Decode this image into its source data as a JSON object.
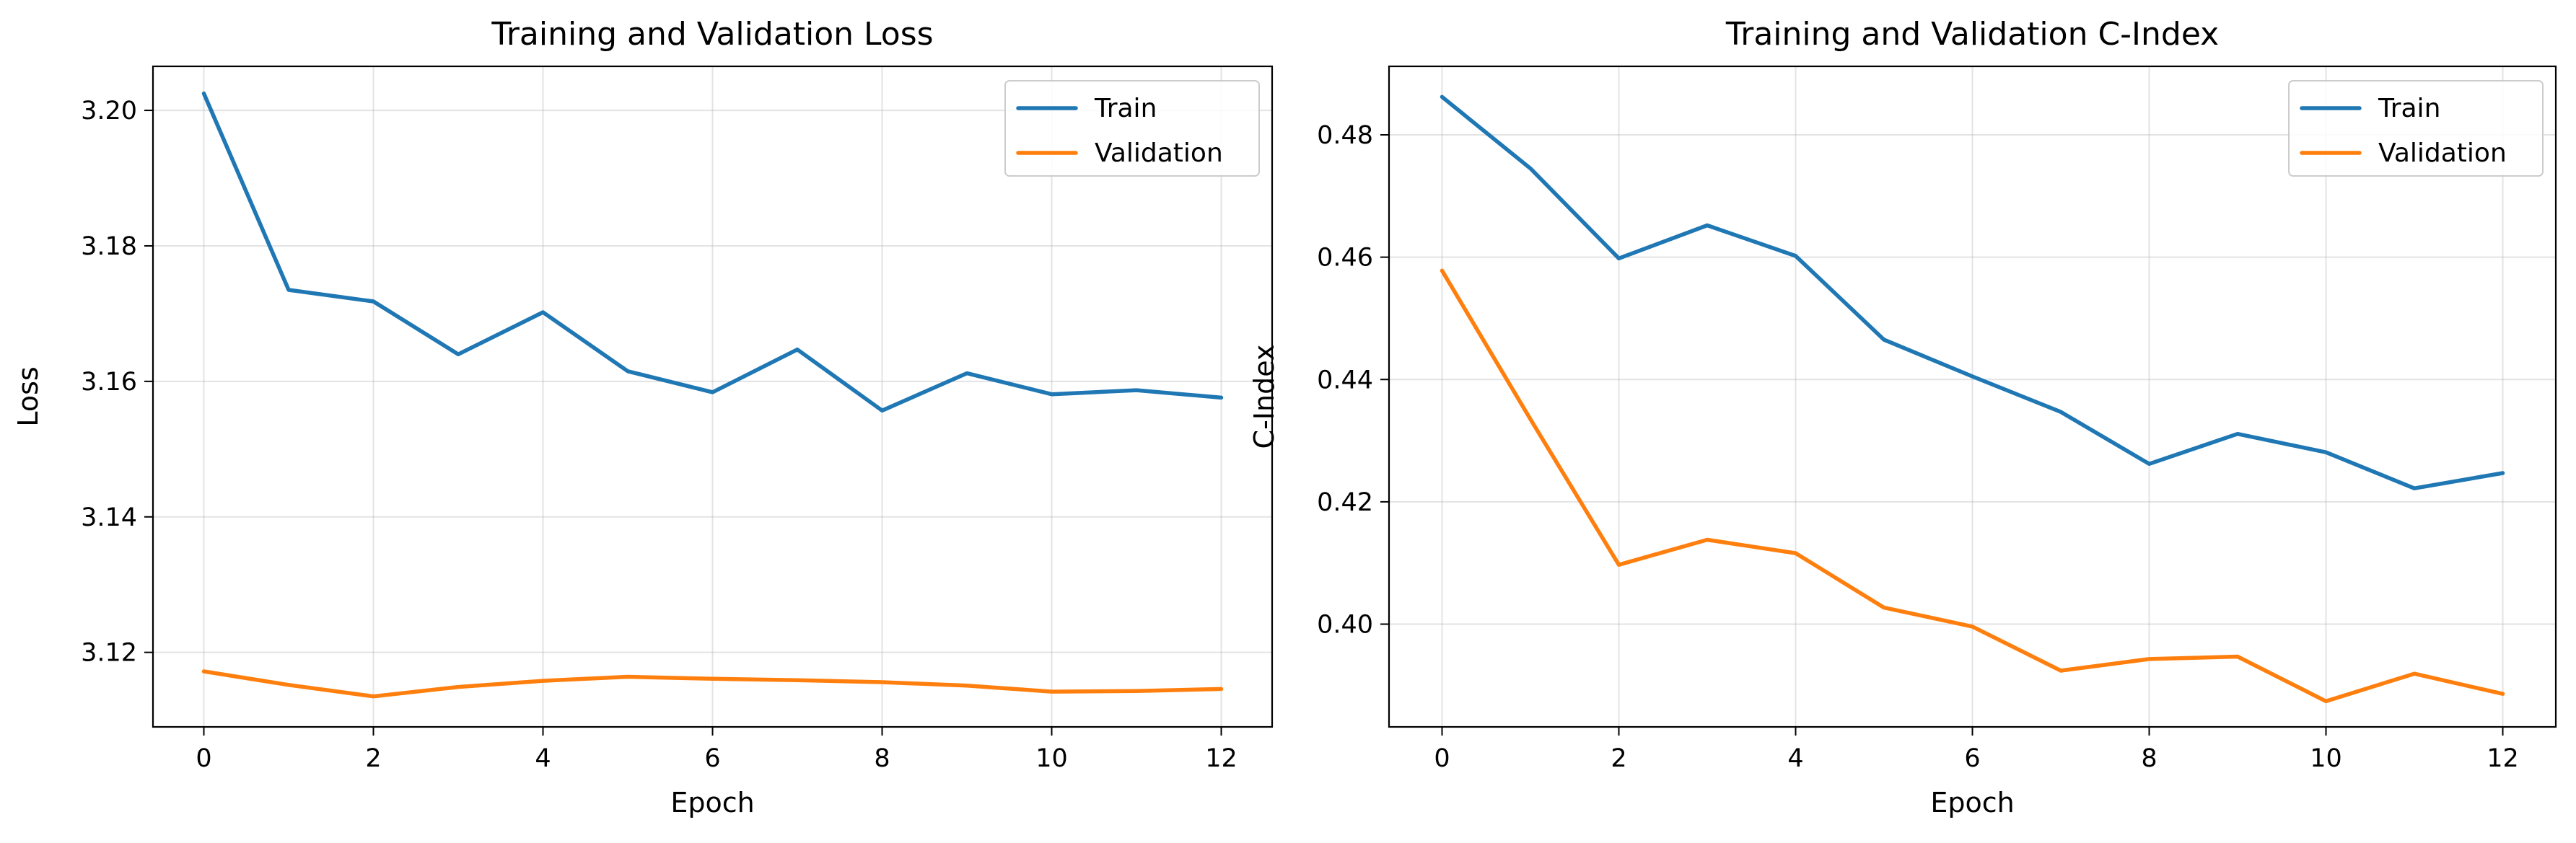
{
  "colors": {
    "train": "#1f77b4",
    "validation": "#ff7f0e"
  },
  "chart_data": [
    {
      "type": "line",
      "title": "Training and Validation Loss",
      "xlabel": "Epoch",
      "ylabel": "Loss",
      "x": [
        0,
        1,
        2,
        3,
        4,
        5,
        6,
        7,
        8,
        9,
        10,
        11,
        12
      ],
      "xlim": [
        -0.6,
        12.6
      ],
      "ylim": [
        3.109,
        3.2065
      ],
      "xticks": [
        0,
        2,
        4,
        6,
        8,
        10,
        12
      ],
      "xtick_labels": [
        "0",
        "2",
        "4",
        "6",
        "8",
        "10",
        "12"
      ],
      "yticks": [
        3.12,
        3.14,
        3.16,
        3.18,
        3.2
      ],
      "ytick_labels": [
        "3.12",
        "3.14",
        "3.16",
        "3.18",
        "3.20"
      ],
      "grid": true,
      "legend_position": "upper right",
      "series": [
        {
          "name": "Train",
          "color_key": "train",
          "values": [
            3.2025,
            3.1735,
            3.1718,
            3.164,
            3.1702,
            3.1615,
            3.1584,
            3.1647,
            3.1557,
            3.1612,
            3.1581,
            3.1587,
            3.1576
          ]
        },
        {
          "name": "Validation",
          "color_key": "validation",
          "values": [
            3.1172,
            3.1152,
            3.1135,
            3.1149,
            3.1158,
            3.1164,
            3.1161,
            3.1159,
            3.1156,
            3.1151,
            3.1142,
            3.1143,
            3.1146
          ]
        }
      ]
    },
    {
      "type": "line",
      "title": "Training and Validation C-Index",
      "xlabel": "Epoch",
      "ylabel": "C-Index",
      "x": [
        0,
        1,
        2,
        3,
        4,
        5,
        6,
        7,
        8,
        9,
        10,
        11,
        12
      ],
      "xlim": [
        -0.6,
        12.6
      ],
      "ylim": [
        0.3832,
        0.4912
      ],
      "xticks": [
        0,
        2,
        4,
        6,
        8,
        10,
        12
      ],
      "xtick_labels": [
        "0",
        "2",
        "4",
        "6",
        "8",
        "10",
        "12"
      ],
      "yticks": [
        0.4,
        0.42,
        0.44,
        0.46,
        0.48
      ],
      "ytick_labels": [
        "0.40",
        "0.42",
        "0.44",
        "0.46",
        "0.48"
      ],
      "grid": true,
      "legend_position": "upper right",
      "series": [
        {
          "name": "Train",
          "color_key": "train",
          "values": [
            0.4862,
            0.4745,
            0.4598,
            0.4652,
            0.4602,
            0.4465,
            0.4405,
            0.4347,
            0.4262,
            0.4311,
            0.4281,
            0.4222,
            0.4247
          ]
        },
        {
          "name": "Validation",
          "color_key": "validation",
          "values": [
            0.4578,
            0.4335,
            0.4097,
            0.4138,
            0.4116,
            0.4027,
            0.3996,
            0.3924,
            0.3943,
            0.3947,
            0.3874,
            0.3919,
            0.3886
          ]
        }
      ]
    }
  ]
}
